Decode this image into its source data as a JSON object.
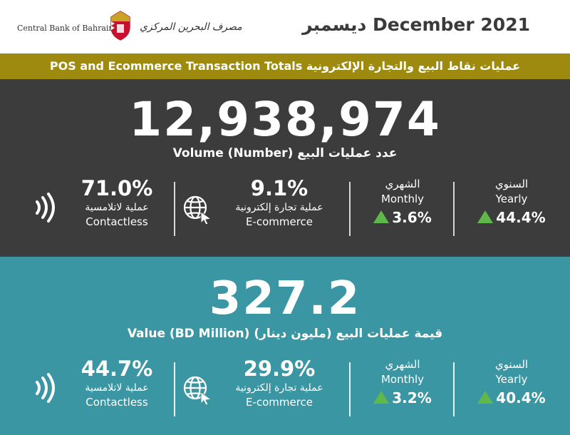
{
  "header": {
    "bank_name_en": "Central Bank of Bahrain",
    "bank_name_ar": "مصرف البحرين المركزي",
    "period": "ديسمبر December 2021"
  },
  "title_bar": {
    "title": "POS and Ecommerce Transaction Totals عمليات نقاط البيع والتجارة الإلكترونية"
  },
  "volume": {
    "total": "12,938,974",
    "label": "Volume (Number) عدد عمليات البيع",
    "contactless": {
      "pct": "71.0%",
      "label_ar": "عملية لاتلامسية",
      "label_en": "Contactless"
    },
    "ecommerce": {
      "pct": "9.1%",
      "label_ar": "عملية تجارة إلكترونية",
      "label_en": "E-commerce"
    },
    "monthly": {
      "label_ar": "الشهري",
      "label_en": "Monthly",
      "change": "3.6%"
    },
    "yearly": {
      "label_ar": "السنوي",
      "label_en": "Yearly",
      "change": "44.4%"
    }
  },
  "value": {
    "total": "327.2",
    "label": "Value (BD Million) قيمة عمليات البيع (مليون دينار)",
    "contactless": {
      "pct": "44.7%",
      "label_ar": "عملية لاتلامسية",
      "label_en": "Contactless"
    },
    "ecommerce": {
      "pct": "29.9%",
      "label_ar": "عملية تجارة إلكترونية",
      "label_en": "E-commerce"
    },
    "monthly": {
      "label_ar": "الشهري",
      "label_en": "Monthly",
      "change": "3.2%"
    },
    "yearly": {
      "label_ar": "السنوي",
      "label_en": "Yearly",
      "change": "40.4%"
    }
  },
  "icons": {
    "crest": "cbb-crest-icon",
    "contactless": "contactless-icon",
    "ecommerce": "globe-cursor-icon",
    "increase": "triangle-up-icon"
  },
  "colors": {
    "title_bar": "#9e8a0f",
    "volume_bg": "#3c3c3c",
    "value_bg": "#3b96a3",
    "increase": "#5fb84a"
  }
}
